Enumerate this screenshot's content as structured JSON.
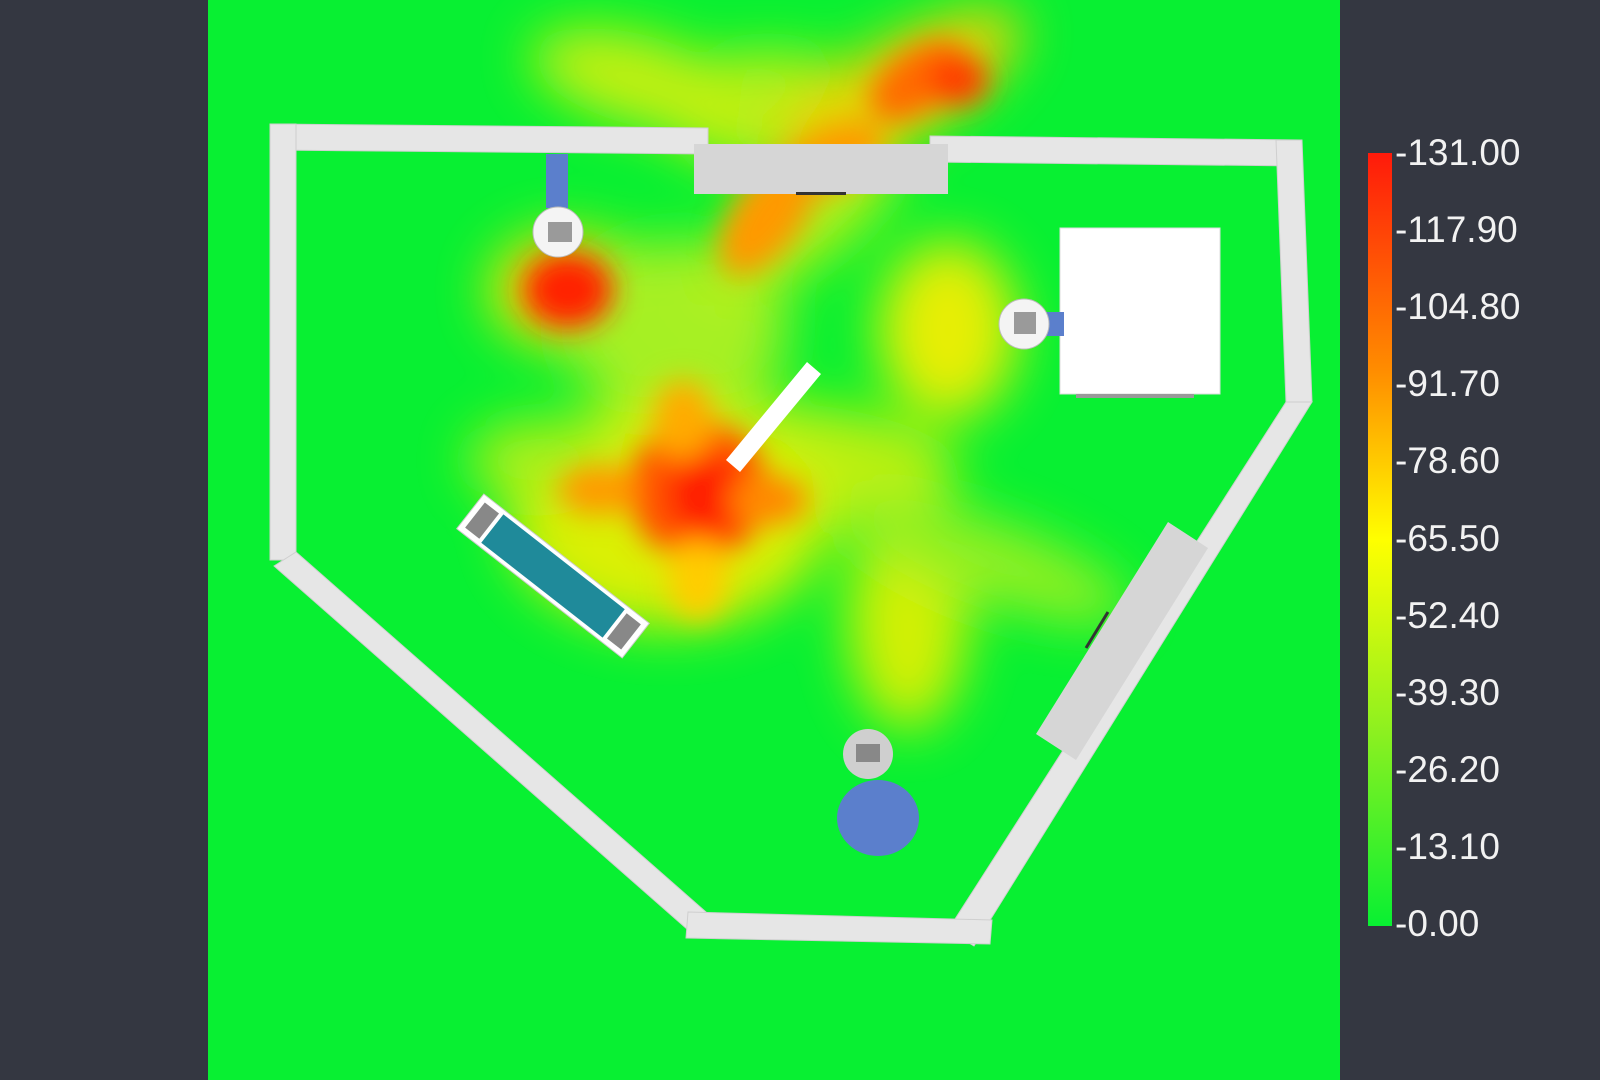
{
  "colorbar": {
    "labels": [
      "-131.00",
      "-117.90",
      "-104.80",
      "-91.70",
      "-78.60",
      "-65.50",
      "-52.40",
      "-39.30",
      "-26.20",
      "-13.10",
      "-0.00"
    ],
    "colors": {
      "max": "#ff1a0a",
      "upper": "#ff8c00",
      "mid": "#ffff00",
      "lower": "#8cf020",
      "min": "#08f032"
    }
  },
  "colors": {
    "background": "#343741",
    "floor": "#08f032",
    "wall": "#e6e6e6",
    "fixture_blue": "#5b7fcc",
    "table_teal": "#1f8a9a"
  },
  "scene": {
    "icons": [
      "camera-icon",
      "camera-icon",
      "camera-icon",
      "sofa-icon",
      "round-table-icon",
      "cabinet-icon",
      "door-icon"
    ]
  }
}
